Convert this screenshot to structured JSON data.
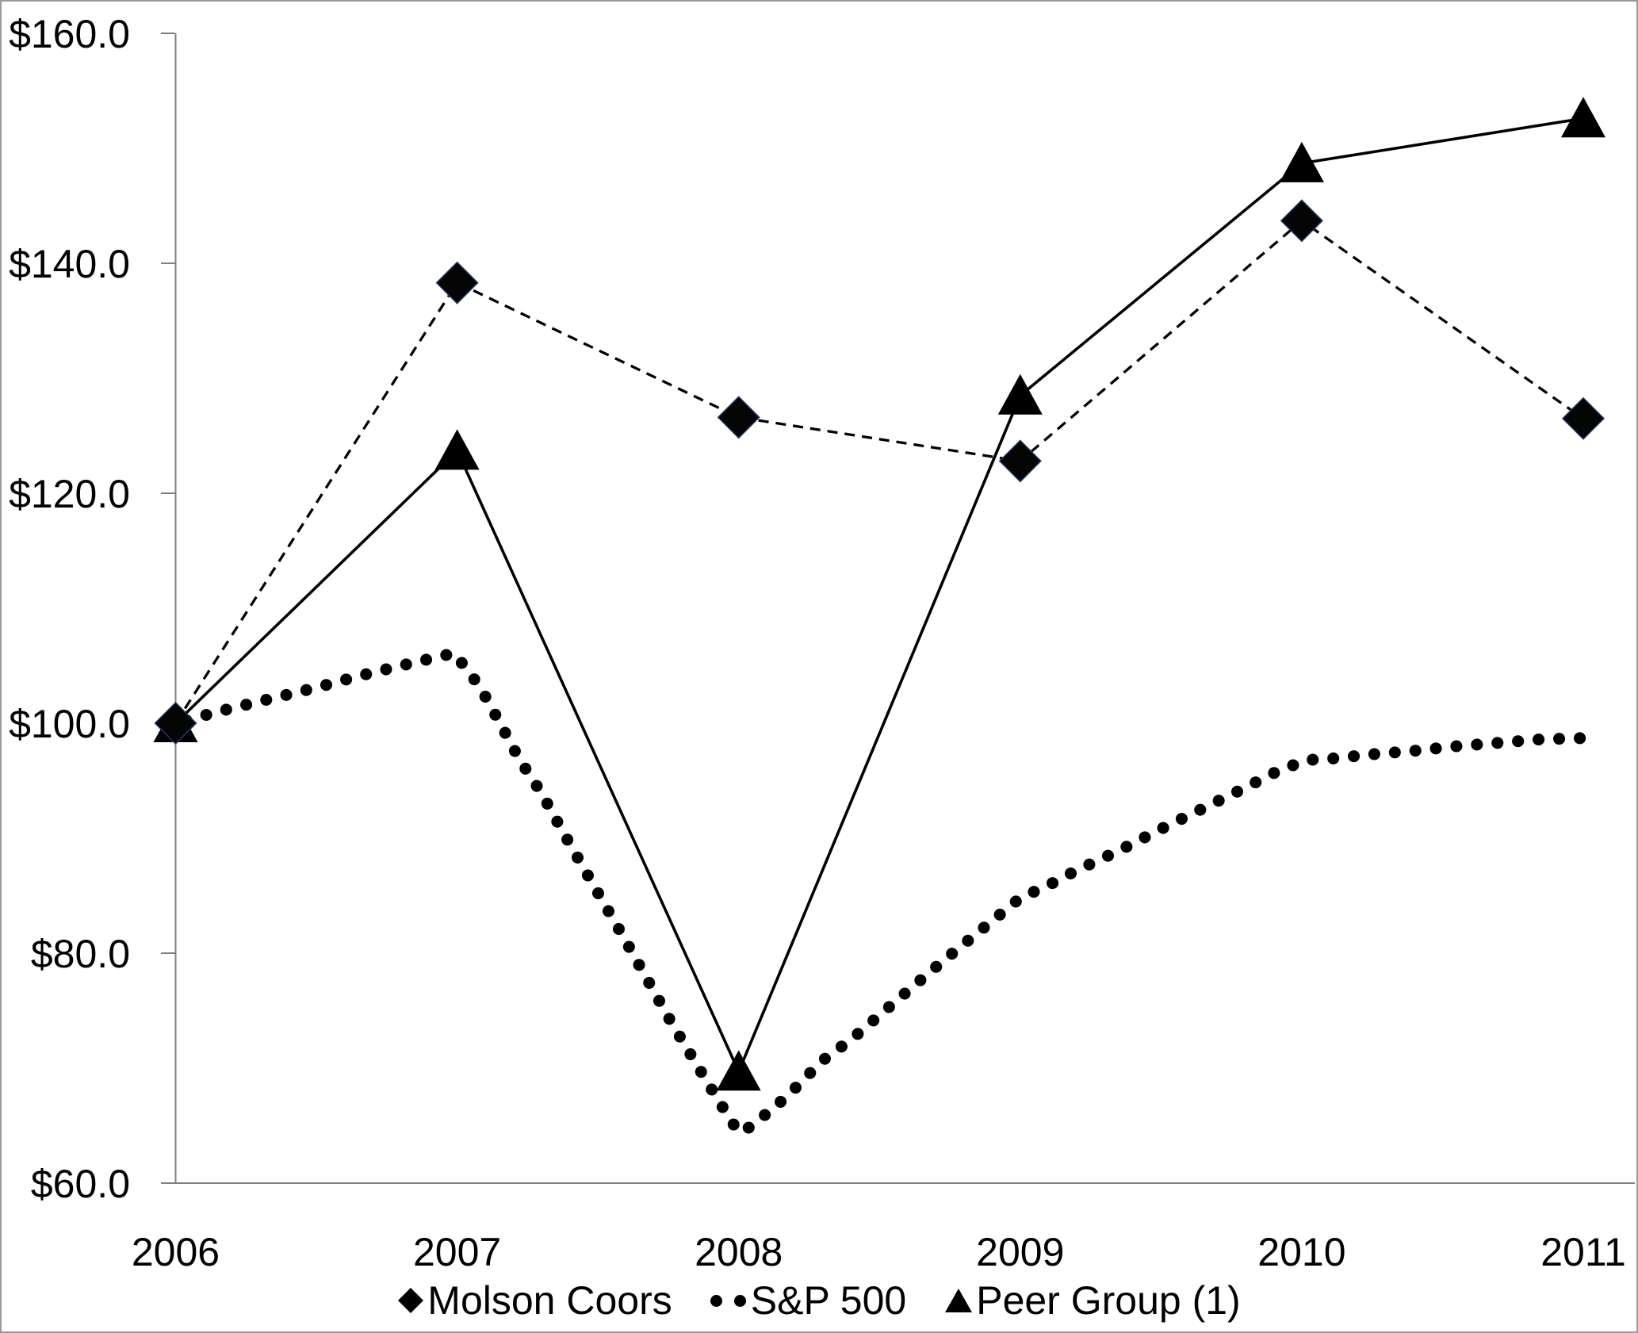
{
  "chart_data": {
    "type": "line",
    "title": "",
    "xlabel": "",
    "ylabel": "",
    "x": [
      2006,
      2007,
      2008,
      2009,
      2010,
      2011
    ],
    "x_tick_labels": [
      "2006",
      "2007",
      "2008",
      "2009",
      "2010",
      "2011"
    ],
    "y_ticks": [
      60,
      80,
      100,
      120,
      140,
      160
    ],
    "y_tick_labels": [
      "$60.0",
      "$80.0",
      "$100.0",
      "$120.0",
      "$140.0",
      "$160.0"
    ],
    "ylim": [
      60,
      160
    ],
    "grid": false,
    "legend_position": "bottom",
    "colors": {
      "series": "#000000",
      "diamond_edge": "#1f3a63",
      "axis": "#808080",
      "text": "#000000",
      "background": "#ffffff"
    },
    "series": [
      {
        "name": "Molson Coors",
        "marker": "diamond",
        "line_style": "dashed",
        "values": [
          100.0,
          138.3,
          126.6,
          122.8,
          143.7,
          126.5
        ]
      },
      {
        "name": "S&P 500",
        "marker": "dot",
        "line_style": "dotted",
        "values": [
          100.0,
          105.5,
          64.4,
          84.8,
          96.6,
          98.7
        ],
        "spline": [
          [
            2006.0,
            100.0
          ],
          [
            2006.15,
            101.0
          ],
          [
            2006.3,
            101.9
          ],
          [
            2006.5,
            103.1
          ],
          [
            2006.65,
            104.1
          ],
          [
            2006.8,
            105.0
          ],
          [
            2006.99,
            106.1
          ],
          [
            2007.08,
            103.2
          ],
          [
            2007.15,
            100.1
          ],
          [
            2007.22,
            96.9
          ],
          [
            2007.3,
            93.9
          ],
          [
            2007.37,
            90.8
          ],
          [
            2007.44,
            87.8
          ],
          [
            2007.6,
            81.0
          ],
          [
            2007.76,
            74.0
          ],
          [
            2007.92,
            67.5
          ],
          [
            2008.0,
            64.4
          ],
          [
            2008.05,
            65.0
          ],
          [
            2008.11,
            66.3
          ],
          [
            2008.17,
            67.5
          ],
          [
            2008.23,
            69.0
          ],
          [
            2008.3,
            70.7
          ],
          [
            2008.4,
            72.5
          ],
          [
            2008.5,
            74.6
          ],
          [
            2008.6,
            76.7
          ],
          [
            2008.72,
            79.2
          ],
          [
            2008.83,
            81.4
          ],
          [
            2008.94,
            83.6
          ],
          [
            2009.0,
            84.8
          ],
          [
            2009.1,
            85.9
          ],
          [
            2009.2,
            87.2
          ],
          [
            2009.35,
            88.9
          ],
          [
            2009.5,
            90.8
          ],
          [
            2009.65,
            92.6
          ],
          [
            2009.8,
            94.4
          ],
          [
            2009.92,
            95.9
          ],
          [
            2010.02,
            96.8
          ],
          [
            2010.1,
            96.9
          ],
          [
            2010.25,
            97.3
          ],
          [
            2010.4,
            97.6
          ],
          [
            2010.55,
            98.0
          ],
          [
            2010.7,
            98.3
          ],
          [
            2010.85,
            98.6
          ],
          [
            2011.0,
            98.7
          ]
        ]
      },
      {
        "name": "Peer Group (1)",
        "marker": "triangle",
        "line_style": "solid",
        "values": [
          100.0,
          123.7,
          69.7,
          128.5,
          148.7,
          152.6
        ]
      }
    ]
  }
}
